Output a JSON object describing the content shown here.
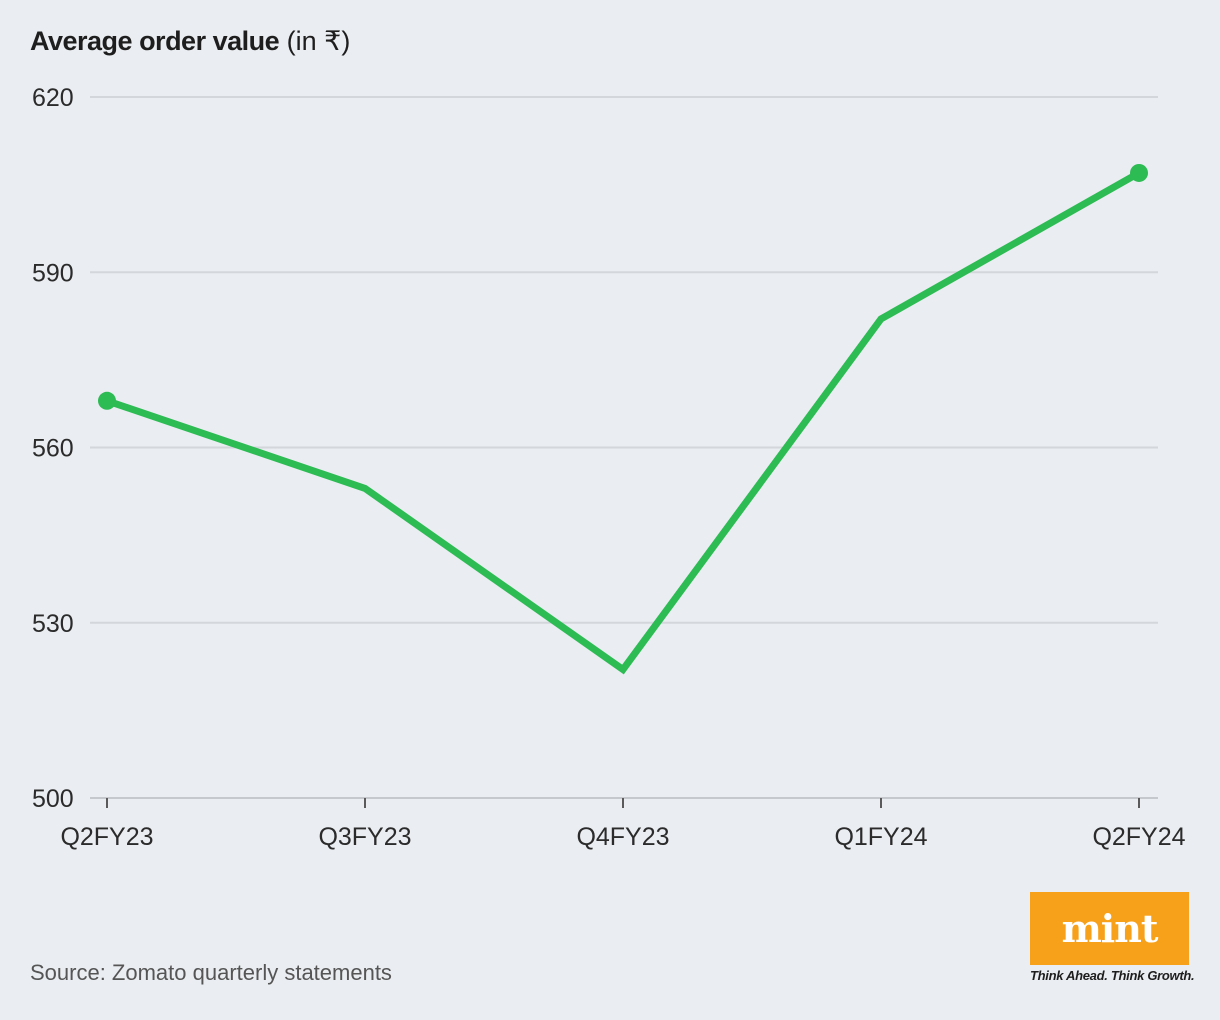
{
  "title": {
    "bold": "Average order value",
    "unit": "(in ₹)"
  },
  "source": "Source: Zomato quarterly statements",
  "logo": {
    "wordmark": "mint",
    "tagline": "Think Ahead. Think Growth.",
    "color": "#f7a11b"
  },
  "chart_data": {
    "type": "line",
    "title": "Average order value",
    "ylabel": "",
    "xlabel": "",
    "categories": [
      "Q2FY23",
      "Q3FY23",
      "Q4FY23",
      "Q1FY24",
      "Q2FY24"
    ],
    "series": [
      {
        "values": [
          568,
          553,
          522,
          582,
          607
        ],
        "color": "#2dbb54"
      }
    ],
    "endpoint_markers": true,
    "ylim": [
      500,
      620
    ],
    "yticks": [
      620,
      590,
      560,
      530,
      500
    ],
    "grid": true,
    "legend": "none"
  }
}
